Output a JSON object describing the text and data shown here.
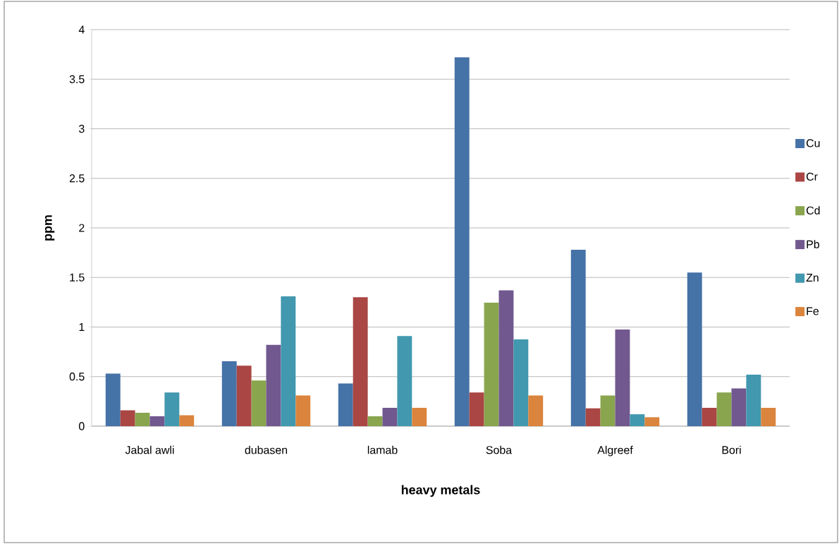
{
  "chart_data": {
    "type": "bar",
    "xlabel": "heavy metals",
    "ylabel": "ppm",
    "categories": [
      "Jabal awli",
      "dubasen",
      "lamab",
      "Soba",
      "Algreef",
      "Bori"
    ],
    "series": [
      {
        "name": "Cu",
        "color": "#4572a7",
        "values": [
          0.53,
          0.655,
          0.43,
          3.72,
          1.78,
          1.55
        ]
      },
      {
        "name": "Cr",
        "color": "#aa4643",
        "values": [
          0.16,
          0.61,
          1.3,
          0.34,
          0.18,
          0.185
        ]
      },
      {
        "name": "Cd",
        "color": "#89a54e",
        "values": [
          0.135,
          0.46,
          0.1,
          1.245,
          0.31,
          0.34
        ]
      },
      {
        "name": "Pb",
        "color": "#71588f",
        "values": [
          0.1,
          0.82,
          0.185,
          1.37,
          0.975,
          0.38
        ]
      },
      {
        "name": "Zn",
        "color": "#4198af",
        "values": [
          0.34,
          1.31,
          0.91,
          0.875,
          0.12,
          0.52
        ]
      },
      {
        "name": "Fe",
        "color": "#db843d",
        "values": [
          0.11,
          0.31,
          0.185,
          0.31,
          0.09,
          0.185
        ]
      }
    ],
    "ylim": [
      0,
      4
    ],
    "yticks": [
      0,
      0.5,
      1,
      1.5,
      2,
      2.5,
      3,
      3.5,
      4
    ],
    "grid": "y",
    "legend": "right"
  }
}
